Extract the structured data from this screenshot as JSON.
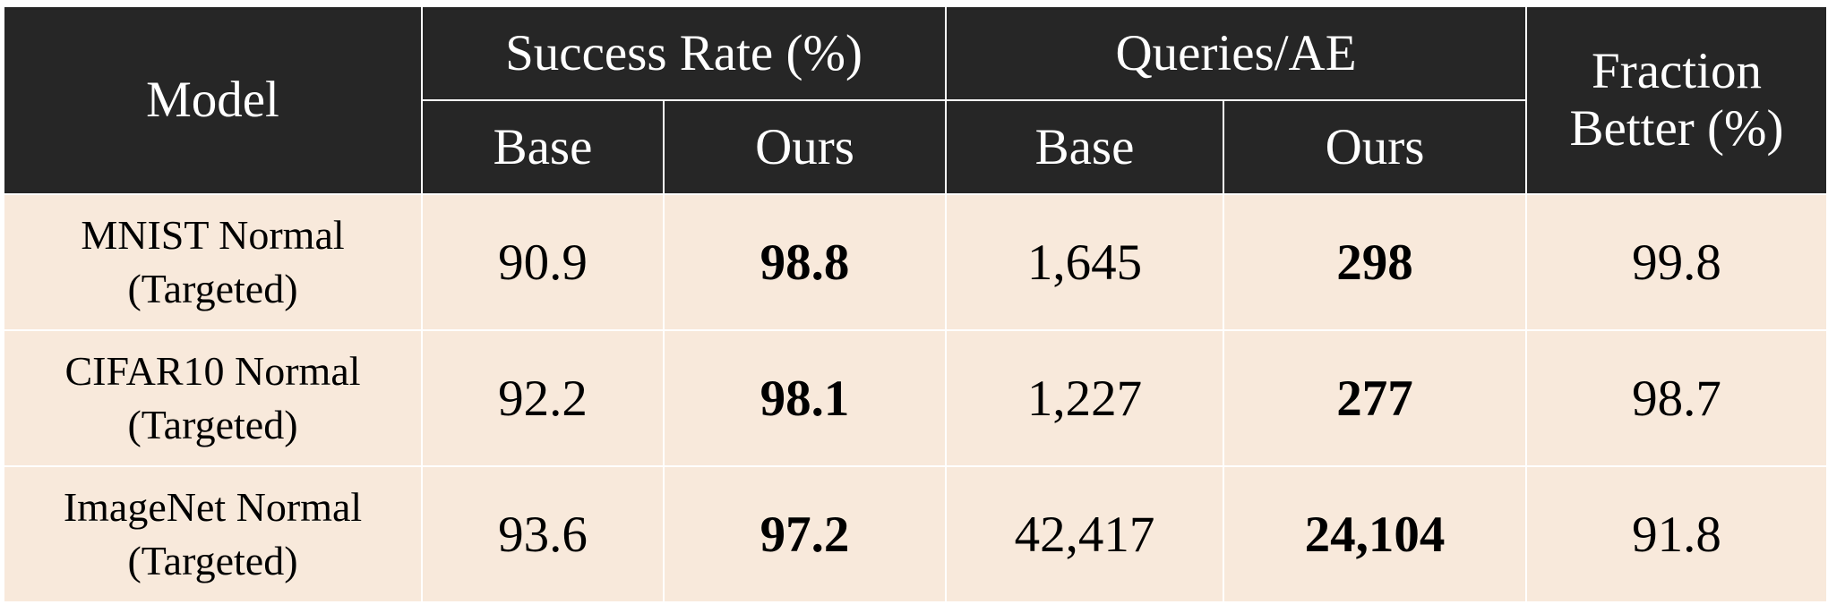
{
  "chart_data": {
    "type": "table",
    "header": {
      "model": "Model",
      "success_rate": "Success Rate (%)",
      "queries_per_ae": "Queries/AE",
      "fraction_better_line1": "Fraction",
      "fraction_better_line2": "Better (%)",
      "base": "Base",
      "ours": "Ours"
    },
    "rows": [
      {
        "model": "MNIST Normal",
        "variant": "(Targeted)",
        "success_base": "90.9",
        "success_ours": "98.8",
        "queries_base": "1,645",
        "queries_ours": "298",
        "fraction_better": "99.8"
      },
      {
        "model": "CIFAR10 Normal",
        "variant": "(Targeted)",
        "success_base": "92.2",
        "success_ours": "98.1",
        "queries_base": "1,227",
        "queries_ours": "277",
        "fraction_better": "98.7"
      },
      {
        "model": "ImageNet Normal",
        "variant": "(Targeted)",
        "success_base": "93.6",
        "success_ours": "97.2",
        "queries_base": "42,417",
        "queries_ours": "24,104",
        "fraction_better": "91.8"
      }
    ],
    "bold_columns": [
      "success_ours",
      "queries_ours"
    ]
  },
  "colors": {
    "header_background": "#262626",
    "header_text": "#ffffff",
    "body_background": "#f8e9db",
    "grid_lines": "#ffffff"
  }
}
